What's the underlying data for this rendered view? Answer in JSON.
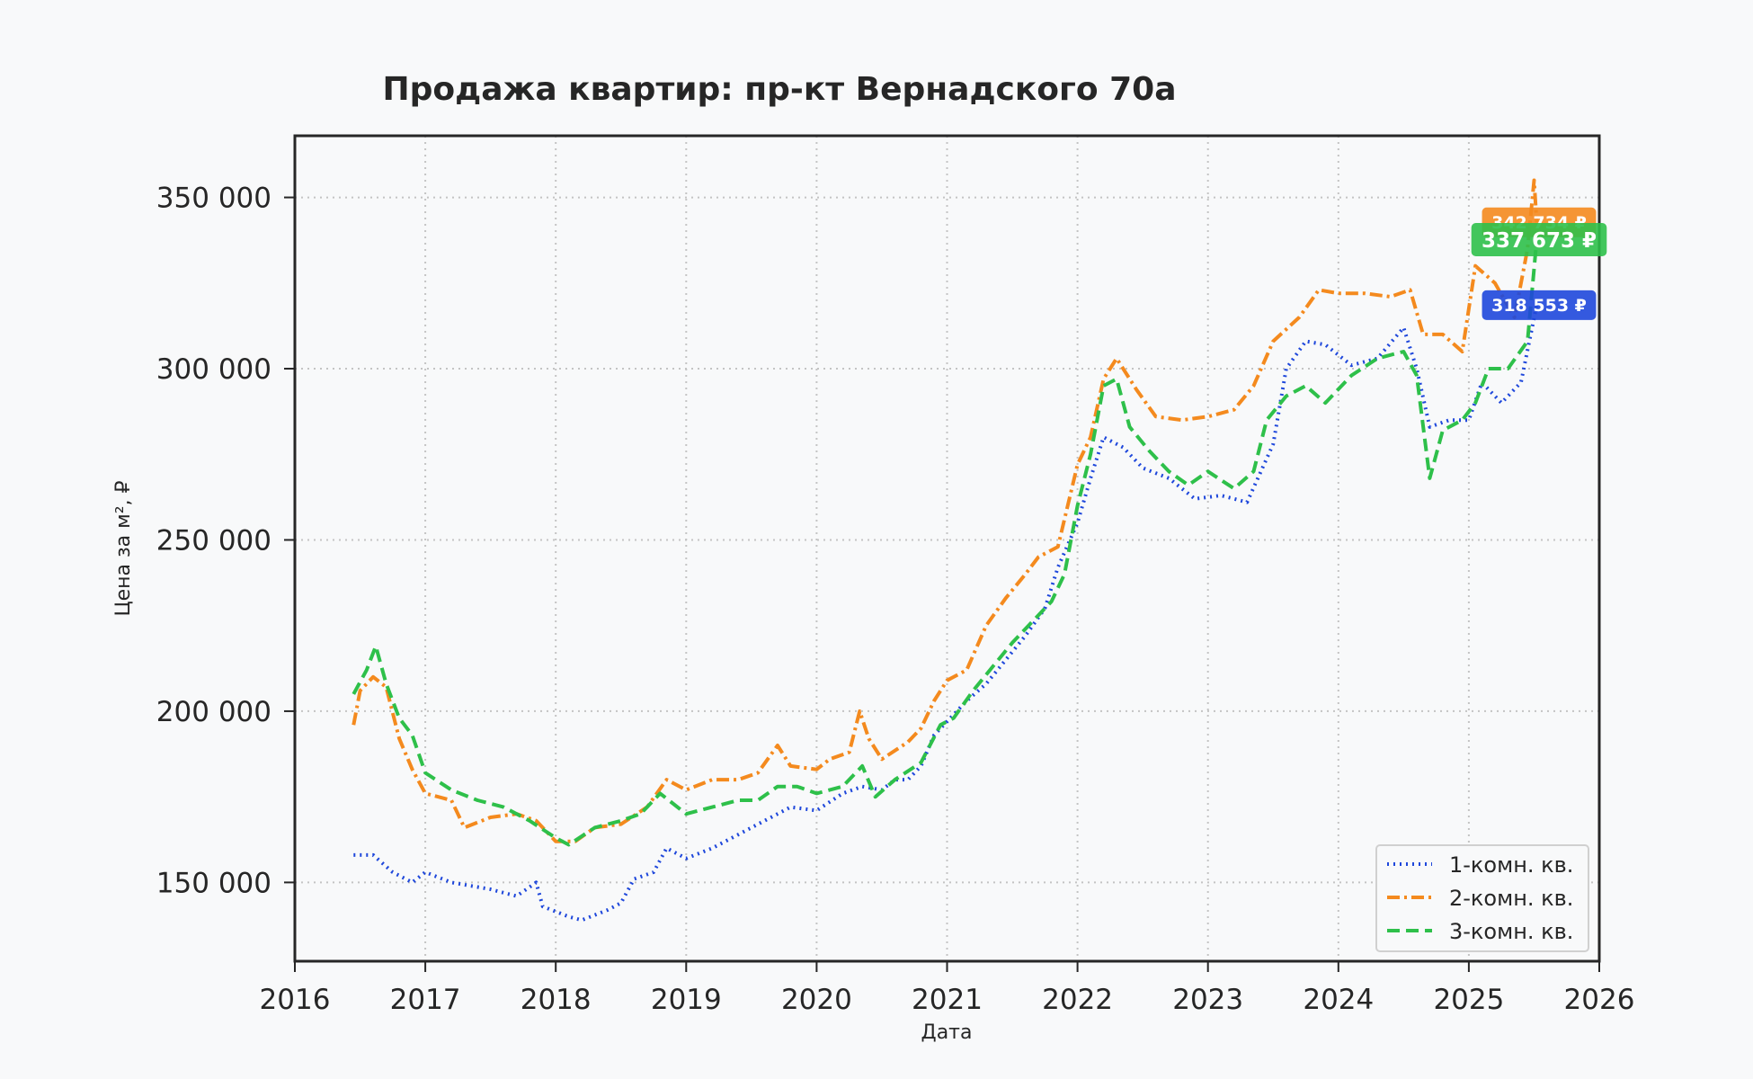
{
  "chart_data": {
    "type": "line",
    "title": "Продажа квартир: пр-кт Вернадского 70а",
    "xlabel": "Дата",
    "ylabel": "Цена за м², ₽",
    "xlim": [
      2016.0,
      2026.0
    ],
    "ylim": [
      127000,
      368000
    ],
    "x_ticks": [
      "2016",
      "2017",
      "2018",
      "2019",
      "2020",
      "2021",
      "2022",
      "2023",
      "2024",
      "2025",
      "2026"
    ],
    "y_ticks": [
      {
        "value": 150000,
        "label": "150 000"
      },
      {
        "value": 200000,
        "label": "200 000"
      },
      {
        "value": 250000,
        "label": "250 000"
      },
      {
        "value": 300000,
        "label": "300 000"
      },
      {
        "value": 350000,
        "label": "350 000"
      }
    ],
    "grid": true,
    "legend_position": "lower-right",
    "series": [
      {
        "name": "1-комн. кв.",
        "color": "#1e47db",
        "dash": "dotted",
        "last_label": "318 553 ₽",
        "points": [
          [
            2016.45,
            158000
          ],
          [
            2016.6,
            158000
          ],
          [
            2016.75,
            153000
          ],
          [
            2016.9,
            150000
          ],
          [
            2017.0,
            153000
          ],
          [
            2017.2,
            150000
          ],
          [
            2017.5,
            148000
          ],
          [
            2017.7,
            146000
          ],
          [
            2017.85,
            150000
          ],
          [
            2017.9,
            143000
          ],
          [
            2018.1,
            140000
          ],
          [
            2018.2,
            139000
          ],
          [
            2018.4,
            142000
          ],
          [
            2018.5,
            144000
          ],
          [
            2018.6,
            151000
          ],
          [
            2018.75,
            153000
          ],
          [
            2018.85,
            160000
          ],
          [
            2019.0,
            157000
          ],
          [
            2019.2,
            160000
          ],
          [
            2019.4,
            164000
          ],
          [
            2019.6,
            168000
          ],
          [
            2019.8,
            172000
          ],
          [
            2020.0,
            171000
          ],
          [
            2020.2,
            176000
          ],
          [
            2020.35,
            178000
          ],
          [
            2020.5,
            177000
          ],
          [
            2020.6,
            180000
          ],
          [
            2020.7,
            180000
          ],
          [
            2020.8,
            184000
          ],
          [
            2020.9,
            193000
          ],
          [
            2021.0,
            197000
          ],
          [
            2021.15,
            203000
          ],
          [
            2021.3,
            208000
          ],
          [
            2021.45,
            215000
          ],
          [
            2021.6,
            222000
          ],
          [
            2021.75,
            230000
          ],
          [
            2021.85,
            242000
          ],
          [
            2022.0,
            255000
          ],
          [
            2022.1,
            268000
          ],
          [
            2022.2,
            280000
          ],
          [
            2022.35,
            277000
          ],
          [
            2022.5,
            271000
          ],
          [
            2022.7,
            268000
          ],
          [
            2022.9,
            262000
          ],
          [
            2023.1,
            263000
          ],
          [
            2023.3,
            261000
          ],
          [
            2023.5,
            278000
          ],
          [
            2023.6,
            300000
          ],
          [
            2023.75,
            308000
          ],
          [
            2023.9,
            307000
          ],
          [
            2024.1,
            301000
          ],
          [
            2024.3,
            303000
          ],
          [
            2024.5,
            312000
          ],
          [
            2024.6,
            300000
          ],
          [
            2024.7,
            283000
          ],
          [
            2024.85,
            285000
          ],
          [
            2025.0,
            285000
          ],
          [
            2025.1,
            296000
          ],
          [
            2025.25,
            290000
          ],
          [
            2025.4,
            296000
          ],
          [
            2025.52,
            318553
          ]
        ]
      },
      {
        "name": "2-комн. кв.",
        "color": "#f48a1e",
        "dash": "dashdot",
        "last_label": "342 734 ₽",
        "points": [
          [
            2016.45,
            196000
          ],
          [
            2016.5,
            206000
          ],
          [
            2016.6,
            210000
          ],
          [
            2016.7,
            207000
          ],
          [
            2016.8,
            192000
          ],
          [
            2016.9,
            183000
          ],
          [
            2017.0,
            176000
          ],
          [
            2017.2,
            174000
          ],
          [
            2017.3,
            166000
          ],
          [
            2017.5,
            169000
          ],
          [
            2017.7,
            170000
          ],
          [
            2017.85,
            168000
          ],
          [
            2018.0,
            162000
          ],
          [
            2018.15,
            162000
          ],
          [
            2018.3,
            166000
          ],
          [
            2018.5,
            167000
          ],
          [
            2018.7,
            172000
          ],
          [
            2018.85,
            180000
          ],
          [
            2019.0,
            177000
          ],
          [
            2019.2,
            180000
          ],
          [
            2019.4,
            180000
          ],
          [
            2019.55,
            182000
          ],
          [
            2019.7,
            190000
          ],
          [
            2019.8,
            184000
          ],
          [
            2020.0,
            183000
          ],
          [
            2020.1,
            186000
          ],
          [
            2020.25,
            188000
          ],
          [
            2020.33,
            200000
          ],
          [
            2020.4,
            192000
          ],
          [
            2020.5,
            186000
          ],
          [
            2020.7,
            191000
          ],
          [
            2020.8,
            195000
          ],
          [
            2020.9,
            203000
          ],
          [
            2021.0,
            209000
          ],
          [
            2021.15,
            212000
          ],
          [
            2021.3,
            225000
          ],
          [
            2021.45,
            233000
          ],
          [
            2021.6,
            240000
          ],
          [
            2021.7,
            245000
          ],
          [
            2021.85,
            248000
          ],
          [
            2022.0,
            272000
          ],
          [
            2022.1,
            280000
          ],
          [
            2022.2,
            297000
          ],
          [
            2022.3,
            303000
          ],
          [
            2022.45,
            294000
          ],
          [
            2022.6,
            286000
          ],
          [
            2022.8,
            285000
          ],
          [
            2023.0,
            286000
          ],
          [
            2023.2,
            288000
          ],
          [
            2023.35,
            295000
          ],
          [
            2023.5,
            308000
          ],
          [
            2023.7,
            315000
          ],
          [
            2023.85,
            323000
          ],
          [
            2024.0,
            322000
          ],
          [
            2024.2,
            322000
          ],
          [
            2024.4,
            321000
          ],
          [
            2024.55,
            323000
          ],
          [
            2024.65,
            310000
          ],
          [
            2024.8,
            310000
          ],
          [
            2024.95,
            305000
          ],
          [
            2025.05,
            330000
          ],
          [
            2025.2,
            325000
          ],
          [
            2025.35,
            315000
          ],
          [
            2025.45,
            335000
          ],
          [
            2025.5,
            355000
          ],
          [
            2025.52,
            342734
          ]
        ]
      },
      {
        "name": "3-комн. кв.",
        "color": "#2ec04a",
        "dash": "dashed",
        "last_label": "337 673 ₽",
        "points": [
          [
            2016.45,
            205000
          ],
          [
            2016.55,
            212000
          ],
          [
            2016.62,
            219000
          ],
          [
            2016.7,
            208000
          ],
          [
            2016.8,
            198000
          ],
          [
            2016.9,
            193000
          ],
          [
            2017.0,
            182000
          ],
          [
            2017.2,
            177000
          ],
          [
            2017.4,
            174000
          ],
          [
            2017.6,
            172000
          ],
          [
            2017.8,
            168000
          ],
          [
            2018.0,
            163000
          ],
          [
            2018.1,
            161000
          ],
          [
            2018.3,
            166000
          ],
          [
            2018.5,
            168000
          ],
          [
            2018.65,
            170000
          ],
          [
            2018.8,
            176000
          ],
          [
            2019.0,
            170000
          ],
          [
            2019.2,
            172000
          ],
          [
            2019.4,
            174000
          ],
          [
            2019.55,
            174000
          ],
          [
            2019.7,
            178000
          ],
          [
            2019.85,
            178000
          ],
          [
            2020.0,
            176000
          ],
          [
            2020.2,
            178000
          ],
          [
            2020.35,
            184000
          ],
          [
            2020.45,
            175000
          ],
          [
            2020.6,
            180000
          ],
          [
            2020.8,
            185000
          ],
          [
            2020.95,
            196000
          ],
          [
            2021.05,
            198000
          ],
          [
            2021.2,
            206000
          ],
          [
            2021.35,
            213000
          ],
          [
            2021.5,
            220000
          ],
          [
            2021.65,
            226000
          ],
          [
            2021.8,
            232000
          ],
          [
            2021.9,
            240000
          ],
          [
            2022.0,
            260000
          ],
          [
            2022.1,
            275000
          ],
          [
            2022.2,
            295000
          ],
          [
            2022.3,
            297000
          ],
          [
            2022.4,
            283000
          ],
          [
            2022.55,
            276000
          ],
          [
            2022.7,
            270000
          ],
          [
            2022.85,
            266000
          ],
          [
            2023.0,
            270000
          ],
          [
            2023.2,
            265000
          ],
          [
            2023.35,
            270000
          ],
          [
            2023.45,
            285000
          ],
          [
            2023.6,
            292000
          ],
          [
            2023.75,
            295000
          ],
          [
            2023.9,
            290000
          ],
          [
            2024.1,
            298000
          ],
          [
            2024.3,
            303000
          ],
          [
            2024.5,
            305000
          ],
          [
            2024.6,
            298000
          ],
          [
            2024.7,
            268000
          ],
          [
            2024.8,
            282000
          ],
          [
            2024.95,
            285000
          ],
          [
            2025.05,
            290000
          ],
          [
            2025.15,
            300000
          ],
          [
            2025.3,
            300000
          ],
          [
            2025.45,
            308000
          ],
          [
            2025.52,
            337673
          ]
        ]
      }
    ]
  }
}
